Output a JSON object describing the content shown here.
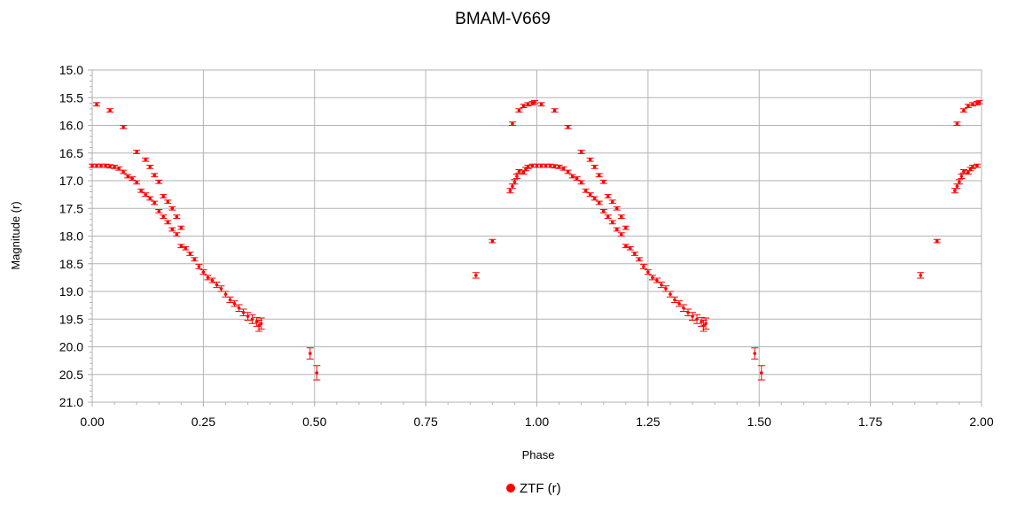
{
  "chart_data": {
    "type": "scatter",
    "title": "BMAM-V669",
    "xlabel": "Phase",
    "ylabel": "Magnitude (r)",
    "xlim": [
      0,
      2
    ],
    "ylim": [
      15,
      21
    ],
    "y_inverted": true,
    "x_ticks": [
      "0.00",
      "0.25",
      "0.50",
      "0.75",
      "1.00",
      "1.25",
      "1.50",
      "1.75",
      "2.00"
    ],
    "y_ticks": [
      "15.0",
      "15.5",
      "16.0",
      "16.5",
      "17.0",
      "17.5",
      "18.0",
      "18.5",
      "19.0",
      "19.5",
      "20.0",
      "20.5",
      "21.0"
    ],
    "grid": true,
    "legend": {
      "position": "bottom-center",
      "entries": [
        {
          "label": "ZTF (r)",
          "color": "#ff0000"
        }
      ]
    },
    "series": [
      {
        "name": "ZTF (r)",
        "color": "#ff0000",
        "repeat_offset": 1,
        "points": [
          [
            0.0,
            16.73,
            0.03
          ],
          [
            0.01,
            16.73,
            0.03
          ],
          [
            0.02,
            16.73,
            0.03
          ],
          [
            0.03,
            16.73,
            0.03
          ],
          [
            0.04,
            16.74,
            0.03
          ],
          [
            0.05,
            16.75,
            0.03
          ],
          [
            0.06,
            16.78,
            0.03
          ],
          [
            0.07,
            16.84,
            0.03
          ],
          [
            0.08,
            16.92,
            0.03
          ],
          [
            0.09,
            16.96,
            0.03
          ],
          [
            0.1,
            17.03,
            0.03
          ],
          [
            0.11,
            17.18,
            0.03
          ],
          [
            0.12,
            17.25,
            0.03
          ],
          [
            0.13,
            17.32,
            0.03
          ],
          [
            0.14,
            17.4,
            0.03
          ],
          [
            0.15,
            17.55,
            0.03
          ],
          [
            0.16,
            17.65,
            0.03
          ],
          [
            0.17,
            17.75,
            0.03
          ],
          [
            0.18,
            17.88,
            0.03
          ],
          [
            0.19,
            17.97,
            0.03
          ],
          [
            0.2,
            18.18,
            0.03
          ],
          [
            0.21,
            18.22,
            0.03
          ],
          [
            0.22,
            18.32,
            0.03
          ],
          [
            0.23,
            18.42,
            0.03
          ],
          [
            0.24,
            18.55,
            0.04
          ],
          [
            0.25,
            18.65,
            0.04
          ],
          [
            0.26,
            18.75,
            0.04
          ],
          [
            0.27,
            18.8,
            0.04
          ],
          [
            0.28,
            18.88,
            0.05
          ],
          [
            0.29,
            18.95,
            0.05
          ],
          [
            0.3,
            19.05,
            0.05
          ],
          [
            0.31,
            19.15,
            0.05
          ],
          [
            0.32,
            19.22,
            0.05
          ],
          [
            0.33,
            19.3,
            0.06
          ],
          [
            0.34,
            19.38,
            0.06
          ],
          [
            0.35,
            19.45,
            0.07
          ],
          [
            0.36,
            19.5,
            0.08
          ],
          [
            0.37,
            19.55,
            0.08
          ],
          [
            0.375,
            19.62,
            0.1
          ],
          [
            0.38,
            19.58,
            0.1
          ],
          [
            0.01,
            15.62,
            0.03
          ],
          [
            0.04,
            15.73,
            0.03
          ],
          [
            0.07,
            16.03,
            0.03
          ],
          [
            0.1,
            16.48,
            0.03
          ],
          [
            0.12,
            16.62,
            0.03
          ],
          [
            0.13,
            16.75,
            0.03
          ],
          [
            0.14,
            16.9,
            0.03
          ],
          [
            0.15,
            17.02,
            0.03
          ],
          [
            0.16,
            17.28,
            0.03
          ],
          [
            0.17,
            17.38,
            0.03
          ],
          [
            0.18,
            17.5,
            0.03
          ],
          [
            0.19,
            17.65,
            0.03
          ],
          [
            0.2,
            17.85,
            0.03
          ],
          [
            0.49,
            20.12,
            0.1
          ],
          [
            0.505,
            20.47,
            0.13
          ],
          [
            0.863,
            18.71,
            0.05
          ],
          [
            0.9,
            18.09,
            0.03
          ],
          [
            0.945,
            15.97,
            0.03
          ],
          [
            0.94,
            17.18,
            0.04
          ],
          [
            0.945,
            17.1,
            0.04
          ],
          [
            0.95,
            17.02,
            0.04
          ],
          [
            0.955,
            16.92,
            0.04
          ],
          [
            0.96,
            16.83,
            0.03
          ],
          [
            0.97,
            16.85,
            0.03
          ],
          [
            0.975,
            16.79,
            0.03
          ],
          [
            0.98,
            16.75,
            0.03
          ],
          [
            0.99,
            16.73,
            0.03
          ],
          [
            0.96,
            15.73,
            0.03
          ],
          [
            0.97,
            15.65,
            0.03
          ],
          [
            0.98,
            15.62,
            0.03
          ],
          [
            0.99,
            15.6,
            0.03
          ],
          [
            0.995,
            15.58,
            0.03
          ]
        ]
      }
    ]
  }
}
